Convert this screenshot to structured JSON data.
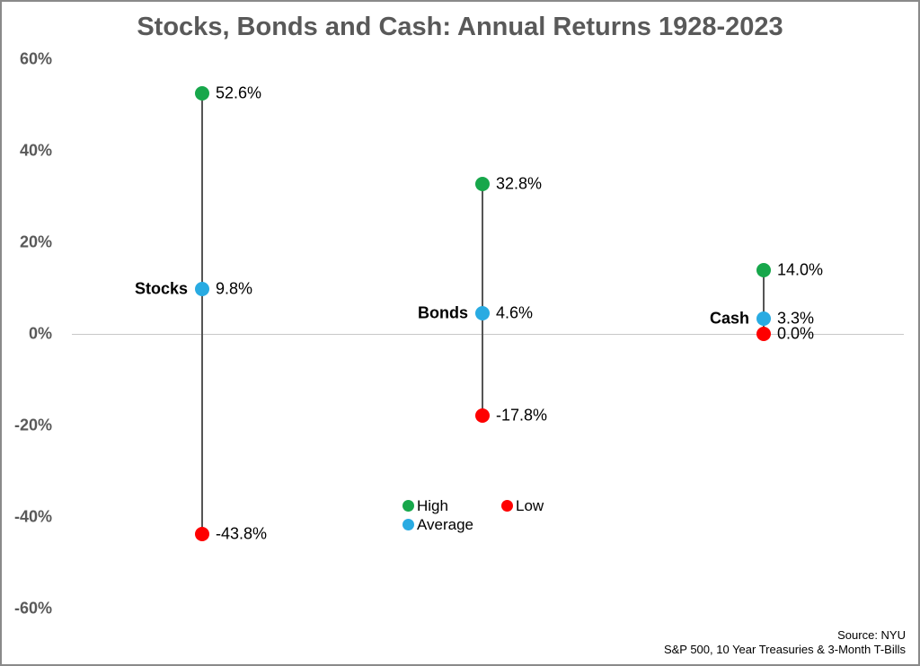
{
  "chart_data": {
    "type": "scatter",
    "title": "Stocks, Bonds and Cash: Annual Returns 1928-2023",
    "xlabel": "",
    "ylabel": "",
    "ylim": [
      -65,
      65
    ],
    "yticks": [
      60,
      40,
      20,
      0,
      -20,
      -40,
      -60
    ],
    "ytick_labels": [
      "60%",
      "40%",
      "20%",
      "0%",
      "-20%",
      "-40%",
      "-60%"
    ],
    "grid": "zero-line-only",
    "legend_position": "bottom-center",
    "categories": [
      "Stocks",
      "Bonds",
      "Cash"
    ],
    "series": [
      {
        "name": "Stocks",
        "values": {
          "high": 52.6,
          "average": 9.8,
          "low": -43.8
        },
        "labels": {
          "high": "52.6%",
          "average": "9.8%",
          "low": "-43.8%"
        }
      },
      {
        "name": "Bonds",
        "values": {
          "high": 32.8,
          "average": 4.6,
          "low": -17.8
        },
        "labels": {
          "high": "32.8%",
          "average": "4.6%",
          "low": "-17.8%"
        }
      },
      {
        "name": "Cash",
        "values": {
          "high": 14.0,
          "average": 3.3,
          "low": 0.0
        },
        "labels": {
          "high": "14.0%",
          "average": "3.3%",
          "low": "0.0%"
        }
      }
    ],
    "legend": [
      {
        "key": "high",
        "label": "High"
      },
      {
        "key": "low",
        "label": "Low"
      },
      {
        "key": "average",
        "label": "Average"
      }
    ]
  },
  "colors": {
    "high": "#17a74b",
    "average": "#29abe2",
    "low": "#fe0000",
    "title": "#595959",
    "axis": "#595959",
    "grid": "#c8c8c8",
    "stem": "#555555"
  },
  "source": {
    "line1": "Source: NYU",
    "line2": "S&P 500, 10 Year Treasuries & 3-Month T-Bills"
  }
}
